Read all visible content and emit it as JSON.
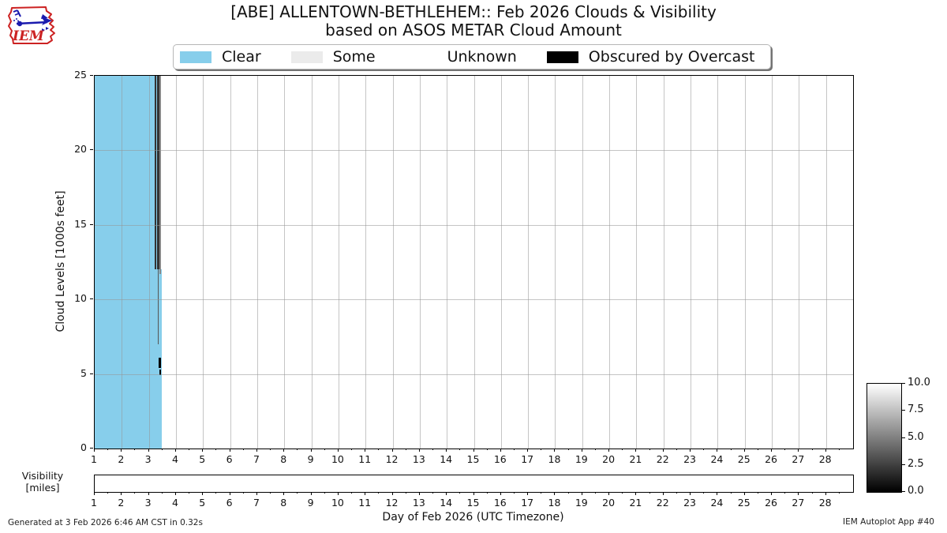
{
  "header": {
    "title_line1": "[ABE] ALLENTOWN-BETHLEHEM:: Feb 2026 Clouds & Visibility",
    "title_line2": "based on ASOS METAR Cloud Amount",
    "logo_text": "IEM"
  },
  "legend": {
    "items": [
      {
        "label": "Clear",
        "color": "#87CEEB"
      },
      {
        "label": "Some",
        "color": "#EBEBEB"
      },
      {
        "label": "Unknown",
        "color": "#FFFFFF"
      },
      {
        "label": "Obscured by Overcast",
        "color": "#000000"
      }
    ]
  },
  "chart_data": {
    "type": "area",
    "title": "[ABE] ALLENTOWN-BETHLEHEM:: Feb 2026 Clouds & Visibility based on ASOS METAR Cloud Amount",
    "xlabel": "Day of Feb 2026 (UTC Timezone)",
    "ylabel": "Cloud Levels [1000s feet]",
    "xlim": [
      1,
      29
    ],
    "ylim": [
      0,
      25
    ],
    "xticks": [
      1,
      2,
      3,
      4,
      5,
      6,
      7,
      8,
      9,
      10,
      11,
      12,
      13,
      14,
      15,
      16,
      17,
      18,
      19,
      20,
      21,
      22,
      23,
      24,
      25,
      26,
      27,
      28
    ],
    "yticks": [
      0,
      5,
      10,
      15,
      20,
      25
    ],
    "grid": true,
    "minor_tick_step_days": 0.5,
    "clear_regions": [
      {
        "day_start": 1.0,
        "day_end": 3.31,
        "kft_bottom": 0,
        "kft_top": 25,
        "color": "#87CEEB"
      },
      {
        "day_start": 3.31,
        "day_end": 3.47,
        "kft_bottom": 0,
        "kft_top": 12,
        "color": "#87CEEB"
      }
    ],
    "cloud_events": [
      {
        "day_start": 3.22,
        "day_end": 3.265,
        "kft_bottom": 12,
        "kft_top": 25,
        "color": "#333333"
      },
      {
        "day_start": 3.31,
        "day_end": 3.39,
        "kft_bottom": 12,
        "kft_top": 25,
        "color": "#333333"
      },
      {
        "day_start": 3.335,
        "day_end": 3.37,
        "kft_bottom": 7,
        "kft_top": 12,
        "color": "#555555"
      },
      {
        "day_start": 3.39,
        "day_end": 3.435,
        "kft_bottom": 11.7,
        "kft_top": 25,
        "color": "#888888"
      },
      {
        "day_start": 3.365,
        "day_end": 3.44,
        "kft_bottom": 5.4,
        "kft_top": 6.1,
        "color": "#000000"
      },
      {
        "day_start": 3.39,
        "day_end": 3.44,
        "kft_bottom": 4.9,
        "kft_top": 5.3,
        "color": "#000000"
      }
    ],
    "visibility_strip": {
      "label_line1": "Visibility",
      "label_line2": "[miles]",
      "xticks": [
        1,
        2,
        3,
        4,
        5,
        6,
        7,
        8,
        9,
        10,
        11,
        12,
        13,
        14,
        15,
        16,
        17,
        18,
        19,
        20,
        21,
        22,
        23,
        24,
        25,
        26,
        27,
        28
      ],
      "visible_fill": "white (≈10 miles over observed period)"
    },
    "colorbar": {
      "tick_labels": [
        "10.0",
        "7.5",
        "5.0",
        "2.5",
        "0.0"
      ],
      "top_color": "#FFFFFF",
      "bottom_color": "#000000"
    }
  },
  "footer": {
    "left": "Generated at 3 Feb 2026 6:46 AM CST in 0.32s",
    "right": "IEM Autoplot App #40"
  }
}
